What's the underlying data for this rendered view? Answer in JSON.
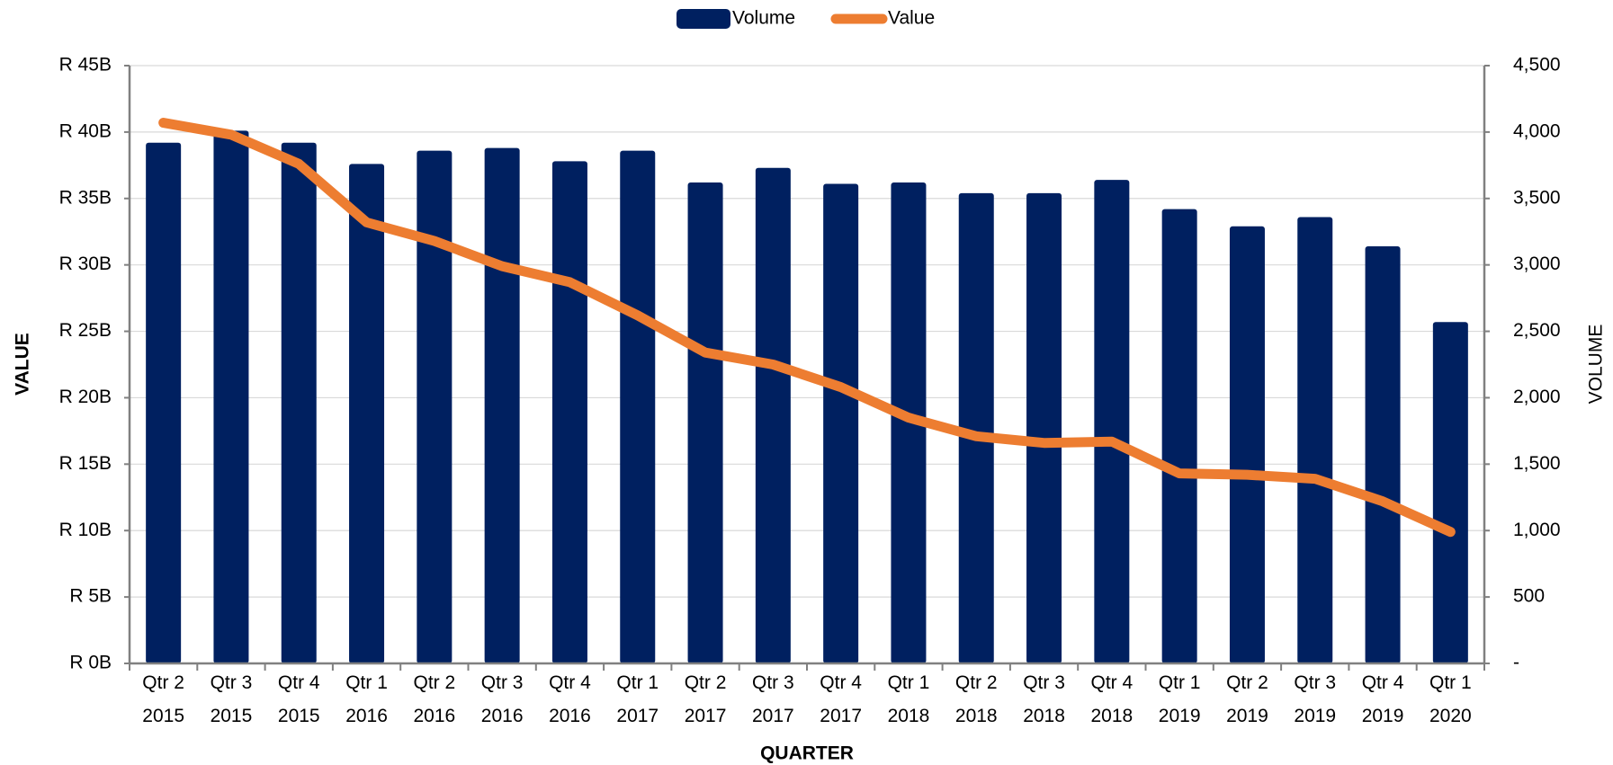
{
  "chart_data": {
    "type": "bar_line",
    "x_label": "QUARTER",
    "y_label": "VALUE",
    "y2_label": "VOLUME",
    "categories": [
      "Qtr 2 2015",
      "Qtr 3 2015",
      "Qtr 4 2015",
      "Qtr 1 2016",
      "Qtr 2 2016",
      "Qtr 3 2016",
      "Qtr 4 2016",
      "Qtr 1 2017",
      "Qtr 2 2017",
      "Qtr 3 2017",
      "Qtr 4 2017",
      "Qtr 1 2018",
      "Qtr 2 2018",
      "Qtr 3 2018",
      "Qtr 4 2018",
      "Qtr 1 2019",
      "Qtr 2 2019",
      "Qtr 3 2019",
      "Qtr 4 2019",
      "Qtr 1 2020"
    ],
    "series": [
      {
        "name": "Volume",
        "type": "bar",
        "axis": "y2",
        "color": "#002060",
        "values": [
          3920,
          4010,
          3920,
          3760,
          3860,
          3880,
          3780,
          3860,
          3620,
          3730,
          3610,
          3620,
          3540,
          3540,
          3640,
          3420,
          3290,
          3360,
          3140,
          2570
        ]
      },
      {
        "name": "Value",
        "type": "line",
        "axis": "y",
        "color": "#ED7D31",
        "values": [
          40.7,
          39.8,
          37.6,
          33.2,
          31.8,
          29.9,
          28.7,
          26.2,
          23.4,
          22.5,
          20.8,
          18.5,
          17.1,
          16.6,
          16.7,
          14.3,
          14.2,
          13.9,
          12.2,
          9.9
        ]
      }
    ],
    "ylim": [
      0,
      45
    ],
    "yticks": [
      {
        "value": 0,
        "label": "R 0B"
      },
      {
        "value": 5,
        "label": "R 5B"
      },
      {
        "value": 10,
        "label": "R 10B"
      },
      {
        "value": 15,
        "label": "R 15B"
      },
      {
        "value": 20,
        "label": "R 20B"
      },
      {
        "value": 25,
        "label": "R 25B"
      },
      {
        "value": 30,
        "label": "R 30B"
      },
      {
        "value": 35,
        "label": "R 35B"
      },
      {
        "value": 40,
        "label": "R 40B"
      },
      {
        "value": 45,
        "label": "R 45B"
      }
    ],
    "y2lim": [
      0,
      4500
    ],
    "y2ticks": [
      {
        "value": 0,
        "label": "-"
      },
      500,
      {
        "value": 1000,
        "label": "1,000"
      },
      {
        "value": 1500,
        "label": "1,500"
      },
      {
        "value": 2000,
        "label": "2,000"
      },
      {
        "value": 2500,
        "label": "2,500"
      },
      {
        "value": 3000,
        "label": "3,000"
      },
      {
        "value": 3500,
        "label": "3,500"
      },
      {
        "value": 4000,
        "label": "4,000"
      },
      {
        "value": 4500,
        "label": "4,500"
      }
    ],
    "grid": true,
    "legend": "top"
  }
}
